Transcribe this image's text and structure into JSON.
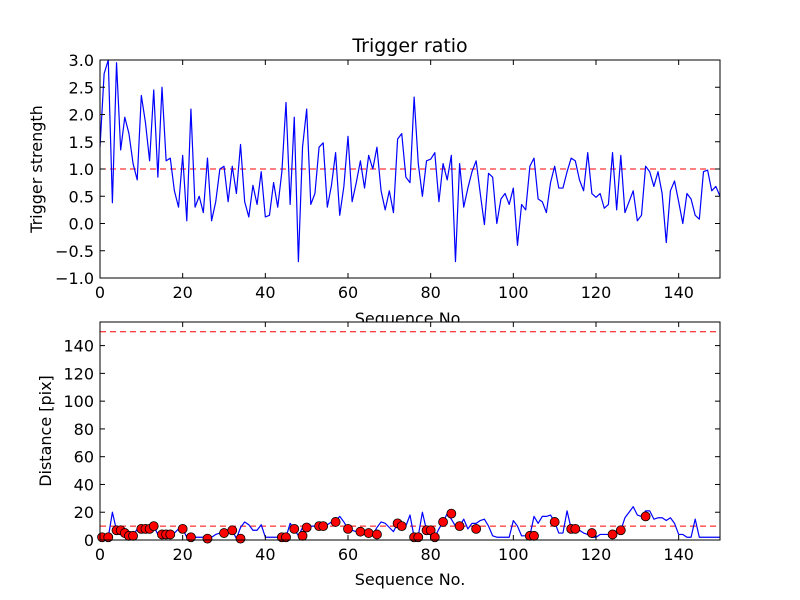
{
  "chart_data": [
    {
      "type": "line",
      "title": "Trigger ratio",
      "xlabel": "Sequence No.",
      "ylabel": "Trigger strength",
      "xlim": [
        0,
        150
      ],
      "ylim": [
        -1.0,
        3.0
      ],
      "xticks": [
        0,
        20,
        40,
        60,
        80,
        100,
        120,
        140
      ],
      "xtick_labels": [
        "0",
        "20",
        "40",
        "60",
        "80",
        "100",
        "120",
        "140"
      ],
      "yticks": [
        -1.0,
        -0.5,
        0.0,
        0.5,
        1.0,
        1.5,
        2.0,
        2.5,
        3.0
      ],
      "ytick_labels": [
        "−1.0",
        "−0.5",
        "0.0",
        "0.5",
        "1.0",
        "1.5",
        "2.0",
        "2.5",
        "3.0"
      ],
      "threshold": 1.0,
      "series": [
        {
          "name": "trigger strength",
          "color": "#0000ff",
          "values": [
            1.4,
            2.75,
            3.0,
            0.38,
            2.95,
            1.35,
            1.95,
            1.65,
            1.1,
            0.8,
            2.35,
            1.85,
            1.15,
            2.45,
            0.85,
            2.5,
            1.15,
            1.2,
            0.6,
            0.3,
            1.25,
            0.05,
            2.1,
            0.3,
            0.5,
            0.2,
            1.2,
            0.05,
            0.4,
            1.0,
            1.05,
            0.4,
            1.05,
            0.55,
            1.45,
            0.4,
            0.12,
            0.7,
            0.35,
            0.95,
            0.12,
            0.15,
            0.75,
            0.3,
            0.95,
            2.22,
            0.35,
            1.95,
            -0.7,
            1.4,
            2.1,
            0.35,
            0.55,
            1.4,
            1.48,
            0.3,
            0.7,
            1.3,
            0.15,
            0.68,
            1.6,
            0.4,
            0.75,
            1.15,
            0.65,
            1.25,
            1.0,
            1.4,
            0.6,
            0.25,
            0.6,
            0.2,
            1.55,
            1.65,
            0.85,
            0.75,
            2.32,
            1.1,
            0.5,
            1.15,
            1.18,
            1.3,
            0.4,
            1.1,
            0.8,
            1.25,
            -0.7,
            1.1,
            0.3,
            0.65,
            0.95,
            1.15,
            0.55,
            -0.02,
            0.92,
            0.85,
            0.0,
            0.45,
            0.55,
            0.35,
            0.65,
            -0.4,
            0.35,
            0.25,
            1.05,
            1.2,
            0.45,
            0.4,
            0.2,
            0.75,
            1.05,
            0.65,
            0.65,
            0.95,
            1.2,
            1.15,
            0.8,
            0.6,
            1.3,
            0.55,
            0.48,
            0.55,
            0.28,
            0.35,
            1.3,
            0.25,
            1.25,
            0.2,
            0.4,
            0.6,
            0.05,
            0.15,
            1.05,
            0.95,
            0.68,
            0.95,
            0.55,
            -0.35,
            0.6,
            0.78,
            0.4,
            0.0,
            0.55,
            0.45,
            0.15,
            0.08,
            0.95,
            0.98,
            0.6,
            0.68,
            0.5
          ]
        }
      ]
    },
    {
      "type": "line",
      "title": "",
      "xlabel": "Sequence No.",
      "ylabel": "Distance [pix]",
      "xlim": [
        0,
        150
      ],
      "ylim": [
        0,
        157
      ],
      "xticks": [
        0,
        20,
        40,
        60,
        80,
        100,
        120,
        140
      ],
      "xtick_labels": [
        "0",
        "20",
        "40",
        "60",
        "80",
        "100",
        "120",
        "140"
      ],
      "yticks": [
        0,
        20,
        40,
        60,
        80,
        100,
        120,
        140
      ],
      "ytick_labels": [
        "0",
        "20",
        "40",
        "60",
        "80",
        "100",
        "120",
        "140"
      ],
      "thresholds": [
        10,
        150
      ],
      "series": [
        {
          "name": "distance",
          "color": "#0000ff",
          "values": [
            2,
            2,
            2,
            20,
            7,
            7,
            5,
            3,
            3,
            8,
            8,
            8,
            8,
            10,
            4,
            4,
            4,
            4,
            5,
            8,
            8,
            2,
            2,
            2,
            2,
            2,
            2,
            2,
            4,
            5,
            5,
            7,
            7,
            1,
            9,
            13,
            11,
            7,
            7,
            11,
            2,
            2,
            2,
            2,
            2,
            2,
            12,
            8,
            3,
            9,
            9,
            10,
            10,
            10,
            10,
            11,
            13,
            14,
            17,
            13,
            8,
            7,
            6,
            6,
            5,
            5,
            4,
            9,
            13,
            12,
            9,
            6,
            12,
            10,
            10,
            18,
            2,
            3,
            20,
            7,
            7,
            2,
            8,
            13,
            19,
            15,
            10,
            10,
            15,
            8,
            12,
            12,
            14,
            15,
            10,
            3,
            2,
            2,
            2,
            2,
            14,
            10,
            3,
            3,
            3,
            17,
            12,
            17,
            17,
            18,
            13,
            5,
            5,
            21,
            8,
            8,
            7,
            5,
            4,
            2,
            2,
            4,
            4,
            4,
            4,
            7,
            7,
            16,
            20,
            24,
            18,
            17,
            21,
            21,
            15,
            16,
            16,
            14,
            16,
            12,
            4,
            4,
            2,
            2,
            15,
            2,
            2,
            2,
            2,
            2,
            2
          ]
        },
        {
          "name": "markers",
          "type": "scatter",
          "color": "#ff0000",
          "points": [
            [
              0.5,
              2
            ],
            [
              2,
              2
            ],
            [
              4,
              7
            ],
            [
              5,
              7
            ],
            [
              6,
              5
            ],
            [
              7,
              3
            ],
            [
              8,
              3
            ],
            [
              10,
              8
            ],
            [
              11,
              8
            ],
            [
              12,
              8
            ],
            [
              13,
              10
            ],
            [
              15,
              4
            ],
            [
              16,
              4
            ],
            [
              17,
              4
            ],
            [
              20,
              8
            ],
            [
              22,
              2
            ],
            [
              26,
              1
            ],
            [
              30,
              5
            ],
            [
              32,
              7
            ],
            [
              34,
              1
            ],
            [
              44,
              2
            ],
            [
              45,
              2
            ],
            [
              47,
              8
            ],
            [
              49,
              3
            ],
            [
              50,
              9
            ],
            [
              53,
              10
            ],
            [
              54,
              10
            ],
            [
              57,
              13
            ],
            [
              60,
              8
            ],
            [
              63,
              6
            ],
            [
              65,
              5
            ],
            [
              67,
              4
            ],
            [
              72,
              12
            ],
            [
              73,
              10
            ],
            [
              76,
              2
            ],
            [
              77,
              2
            ],
            [
              79,
              7
            ],
            [
              80,
              7
            ],
            [
              81,
              2
            ],
            [
              83,
              13
            ],
            [
              85,
              19
            ],
            [
              87,
              10
            ],
            [
              91,
              8
            ],
            [
              104,
              3
            ],
            [
              105,
              3
            ],
            [
              110,
              13
            ],
            [
              114,
              8
            ],
            [
              115,
              8
            ],
            [
              119,
              5
            ],
            [
              124,
              4
            ],
            [
              126,
              7
            ],
            [
              132,
              17
            ]
          ]
        }
      ]
    }
  ]
}
